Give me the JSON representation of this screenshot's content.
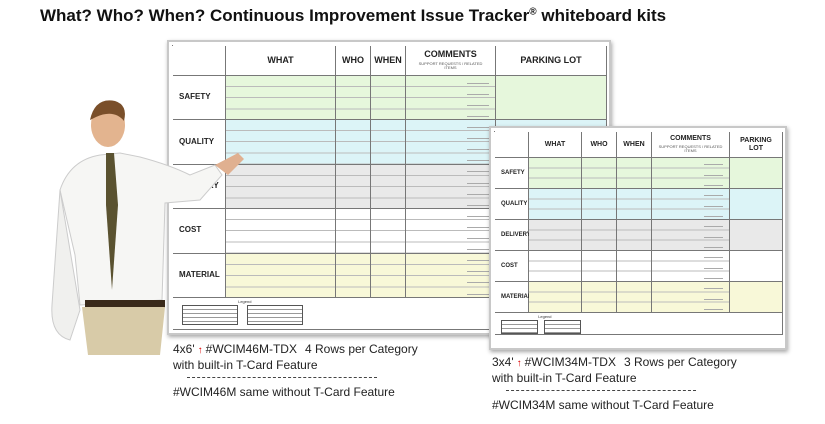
{
  "title": {
    "text": "What? Who? When? Continuous Improvement Issue Tracker",
    "mark": "®",
    "suffix": "whiteboard kits"
  },
  "board": {
    "headers": [
      "WHAT",
      "WHO",
      "WHEN",
      "COMMENTS",
      "PARKING LOT"
    ],
    "comments_sub": "SUPPORT REQUESTS / RELATED ITEMS",
    "rows": [
      "SAFETY",
      "QUALITY",
      "DELIVERY",
      "COST",
      "MATERIAL"
    ],
    "legend": "Legend"
  },
  "products": [
    {
      "size": "4x6'",
      "code": "#WCIM46M-TDX",
      "rows_note": "4 Rows per Category",
      "feature": "with built-in T-Card Feature",
      "alt": "#WCIM46M same without T-Card Feature"
    },
    {
      "size": "3x4'",
      "code": "#WCIM34M-TDX",
      "rows_note": "3 Rows per Category",
      "feature": "with built-in T-Card Feature",
      "alt": "#WCIM34M same without T-Card Feature"
    }
  ]
}
